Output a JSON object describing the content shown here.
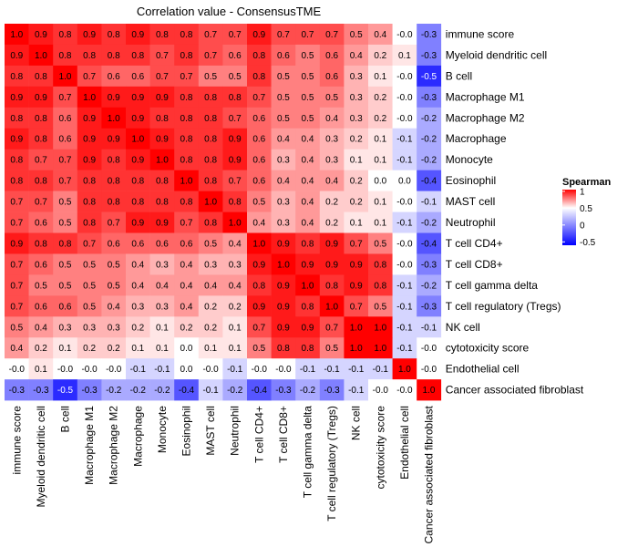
{
  "chart_data": {
    "type": "heatmap",
    "title": "Correlation value - ConsensusTME",
    "legend": {
      "title": "Spearman",
      "ticks": [
        "1",
        "0.5",
        "0",
        "-0.5"
      ],
      "tick_values": [
        1,
        0.5,
        0,
        -0.5
      ],
      "range": [
        -0.6,
        1.05
      ],
      "placement": "right"
    },
    "colors": {
      "low": "#0000ff",
      "mid": "#ffffff",
      "high": "#ff0000"
    },
    "labels": [
      "immune score",
      "Myeloid dendritic cell",
      "B cell",
      "Macrophage M1",
      "Macrophage M2",
      "Macrophage",
      "Monocyte",
      "Eosinophil",
      "MAST cell",
      "Neutrophil",
      "T cell CD4+",
      "T cell CD8+",
      "T cell gamma delta",
      "T cell regulatory (Tregs)",
      "NK cell",
      "cytotoxicity score",
      "Endothelial cell",
      "Cancer associated fibroblast"
    ],
    "values": [
      [
        1.0,
        0.9,
        0.8,
        0.9,
        0.8,
        0.9,
        0.8,
        0.8,
        0.7,
        0.7,
        0.9,
        0.7,
        0.7,
        0.7,
        0.5,
        0.4,
        -0.0,
        -0.3
      ],
      [
        0.9,
        1.0,
        0.8,
        0.8,
        0.8,
        0.8,
        0.7,
        0.8,
        0.7,
        0.6,
        0.8,
        0.6,
        0.5,
        0.6,
        0.4,
        0.2,
        0.1,
        -0.3
      ],
      [
        0.8,
        0.8,
        1.0,
        0.7,
        0.6,
        0.6,
        0.7,
        0.7,
        0.5,
        0.5,
        0.8,
        0.5,
        0.5,
        0.6,
        0.3,
        0.1,
        -0.0,
        -0.5
      ],
      [
        0.9,
        0.9,
        0.7,
        1.0,
        0.9,
        0.9,
        0.9,
        0.8,
        0.8,
        0.8,
        0.7,
        0.5,
        0.5,
        0.5,
        0.3,
        0.2,
        -0.0,
        -0.3
      ],
      [
        0.8,
        0.8,
        0.6,
        0.9,
        1.0,
        0.9,
        0.8,
        0.8,
        0.8,
        0.7,
        0.6,
        0.5,
        0.5,
        0.4,
        0.3,
        0.2,
        -0.0,
        -0.2
      ],
      [
        0.9,
        0.8,
        0.6,
        0.9,
        0.9,
        1.0,
        0.9,
        0.8,
        0.8,
        0.9,
        0.6,
        0.4,
        0.4,
        0.3,
        0.2,
        0.1,
        -0.1,
        -0.2
      ],
      [
        0.8,
        0.7,
        0.7,
        0.9,
        0.8,
        0.9,
        1.0,
        0.8,
        0.8,
        0.9,
        0.6,
        0.3,
        0.4,
        0.3,
        0.1,
        0.1,
        -0.1,
        -0.2
      ],
      [
        0.8,
        0.8,
        0.7,
        0.8,
        0.8,
        0.8,
        0.8,
        1.0,
        0.8,
        0.7,
        0.6,
        0.4,
        0.4,
        0.4,
        0.2,
        0.0,
        0.0,
        -0.4
      ],
      [
        0.7,
        0.7,
        0.5,
        0.8,
        0.8,
        0.8,
        0.8,
        0.8,
        1.0,
        0.8,
        0.5,
        0.3,
        0.4,
        0.2,
        0.2,
        0.1,
        -0.0,
        -0.1
      ],
      [
        0.7,
        0.6,
        0.5,
        0.8,
        0.7,
        0.9,
        0.9,
        0.7,
        0.8,
        1.0,
        0.4,
        0.3,
        0.4,
        0.2,
        0.1,
        0.1,
        -0.1,
        -0.2
      ],
      [
        0.9,
        0.8,
        0.8,
        0.7,
        0.6,
        0.6,
        0.6,
        0.6,
        0.5,
        0.4,
        1.0,
        0.9,
        0.8,
        0.9,
        0.7,
        0.5,
        -0.0,
        -0.4
      ],
      [
        0.7,
        0.6,
        0.5,
        0.5,
        0.5,
        0.4,
        0.3,
        0.4,
        0.3,
        0.3,
        0.9,
        1.0,
        0.9,
        0.9,
        0.9,
        0.8,
        -0.0,
        -0.3
      ],
      [
        0.7,
        0.5,
        0.5,
        0.5,
        0.5,
        0.4,
        0.4,
        0.4,
        0.4,
        0.4,
        0.8,
        0.9,
        1.0,
        0.8,
        0.9,
        0.8,
        -0.1,
        -0.2
      ],
      [
        0.7,
        0.6,
        0.6,
        0.5,
        0.4,
        0.3,
        0.3,
        0.4,
        0.2,
        0.2,
        0.9,
        0.9,
        0.8,
        1.0,
        0.7,
        0.5,
        -0.1,
        -0.3
      ],
      [
        0.5,
        0.4,
        0.3,
        0.3,
        0.3,
        0.2,
        0.1,
        0.2,
        0.2,
        0.1,
        0.7,
        0.9,
        0.9,
        0.7,
        1.0,
        1.0,
        -0.1,
        -0.1
      ],
      [
        0.4,
        0.2,
        0.1,
        0.2,
        0.2,
        0.1,
        0.1,
        0.0,
        0.1,
        0.1,
        0.5,
        0.8,
        0.8,
        0.5,
        1.0,
        1.0,
        -0.1,
        -0.0
      ],
      [
        -0.0,
        0.1,
        -0.0,
        -0.0,
        -0.0,
        -0.1,
        -0.1,
        0.0,
        -0.0,
        -0.1,
        -0.0,
        -0.0,
        -0.1,
        -0.1,
        -0.1,
        -0.1,
        1.0,
        -0.0
      ],
      [
        -0.3,
        -0.3,
        -0.5,
        -0.3,
        -0.2,
        -0.2,
        -0.2,
        -0.4,
        -0.1,
        -0.2,
        -0.4,
        -0.3,
        -0.2,
        -0.3,
        -0.1,
        -0.0,
        -0.0,
        1.0
      ]
    ]
  }
}
